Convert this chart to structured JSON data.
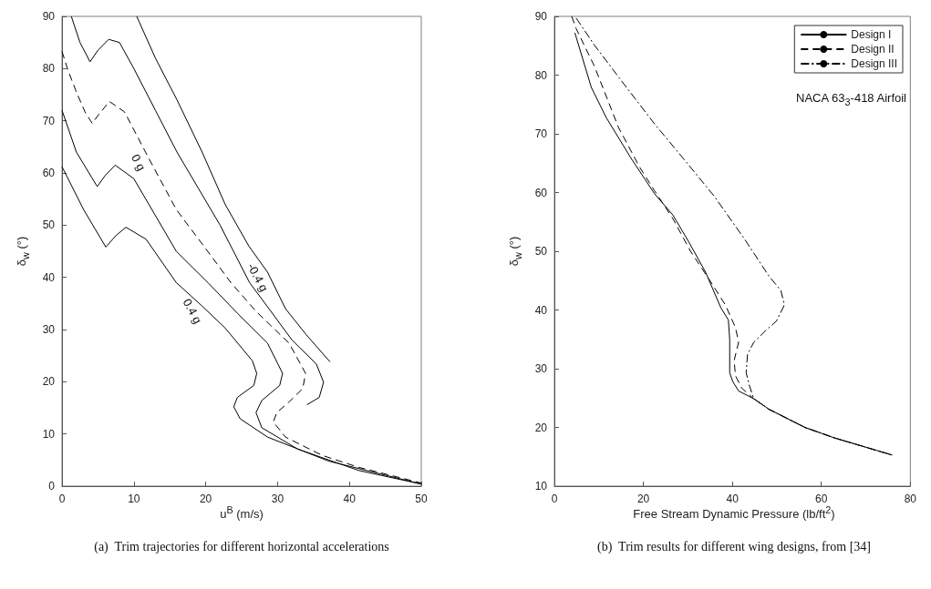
{
  "chart_data": [
    {
      "type": "line",
      "xlabel": "u$^{B}$ (m/s)",
      "ylabel": "δ$_{w}$ (°)",
      "xlim": [
        0,
        50
      ],
      "xticks": [
        0,
        10,
        20,
        30,
        40,
        50
      ],
      "ylim": [
        0,
        90
      ],
      "yticks": [
        0,
        10,
        20,
        30,
        40,
        50,
        60,
        70,
        80,
        90
      ],
      "grid": false,
      "legend": false,
      "marker": "none",
      "series": [
        {
          "color": "#000000",
          "line_style": "solid",
          "x": [
            10.4,
            13,
            16,
            19.5,
            22.7,
            26,
            28.6,
            31.1,
            34,
            37.3
          ],
          "values": [
            90,
            82,
            74,
            64,
            54,
            46,
            41,
            34,
            29,
            23.8
          ]
        },
        {
          "color": "#000000",
          "line_style": "solid",
          "x": [
            1.3,
            2.5,
            3.9,
            5,
            6.5,
            8,
            10,
            13,
            16,
            19,
            22,
            26.1,
            28.8,
            32,
            35.4,
            36.4,
            35.8,
            34.1
          ],
          "values": [
            90,
            85,
            81.3,
            83.5,
            85.6,
            85,
            80,
            72,
            64,
            57,
            50,
            39,
            34,
            28,
            23.4,
            19.9,
            17,
            15.6
          ]
        },
        {
          "color": "#000000",
          "line_style": "dashed",
          "x": [
            0,
            0.8,
            2,
            3.2,
            4.2,
            5,
            6.6,
            8.7,
            12,
            15.9,
            20,
            23.5,
            27,
            31.6,
            33.9,
            33.5,
            31.5,
            29.9,
            29.4,
            31.1,
            36.2,
            41.3,
            50
          ],
          "values": [
            83.3,
            79.8,
            75.5,
            71.7,
            69.5,
            71,
            73.7,
            71.7,
            63,
            53,
            45.5,
            39,
            33.5,
            27.4,
            21.6,
            18.7,
            16,
            14.1,
            12.3,
            9.4,
            5.9,
            3.6,
            0.6
          ]
        },
        {
          "color": "#000000",
          "line_style": "solid",
          "x": [
            0,
            2,
            4.9,
            6,
            7.4,
            10,
            15.9,
            20.3,
            24.5,
            28.6,
            30.7,
            30.3,
            27.8,
            27,
            27.8,
            32.8,
            41.3,
            50
          ],
          "values": [
            72,
            64,
            57.4,
            59.5,
            61.5,
            58.9,
            45,
            39,
            33,
            27.4,
            21.6,
            19.3,
            16.4,
            14.1,
            11.2,
            7.1,
            3,
            0.4
          ]
        },
        {
          "color": "#000000",
          "line_style": "solid",
          "x": [
            0,
            3,
            6.1,
            7.5,
            8.9,
            11.7,
            15.9,
            19.5,
            22.7,
            26.5,
            27.1,
            26.7,
            24.4,
            23.9,
            24.8,
            28.6,
            37.1,
            50
          ],
          "values": [
            61.2,
            53,
            45.8,
            48,
            49.6,
            47.3,
            39,
            34.5,
            30.3,
            24,
            21.6,
            19.3,
            17,
            15.2,
            12.9,
            9.4,
            4.8,
            0.4
          ]
        }
      ],
      "annotations": [
        {
          "text": "-0.4 g",
          "x": 28.6,
          "y": 41
        },
        {
          "text": "0 g",
          "x": 12,
          "y": 63
        },
        {
          "text": "0.4 g",
          "x": 19.5,
          "y": 34.5
        },
        "(a)  Trim trajectories for different horizontal accelerations"
      ]
    },
    {
      "type": "line",
      "xlabel": "Free Stream Dynamic Pressure (lb/ft$^{2}$)",
      "ylabel": "δ$_{w}$ (°)",
      "xlim": [
        0,
        80
      ],
      "xticks": [
        0,
        20,
        40,
        60,
        80
      ],
      "ylim": [
        10,
        90
      ],
      "yticks": [
        10,
        20,
        30,
        40,
        50,
        60,
        70,
        80,
        90
      ],
      "grid": false,
      "legend": "top right",
      "marker": "none",
      "series": [
        {
          "name": "Design I",
          "color": "#000000",
          "line_style": "solid",
          "x": [
            4.6,
            8.3,
            11.7,
            17.1,
            22.5,
            26.6,
            29.9,
            34,
            37.4,
            39.1,
            39.4,
            39.4,
            40.1,
            41.4,
            44.8,
            48.2,
            56.3,
            63,
            75.9
          ],
          "values": [
            87.2,
            77.9,
            72.7,
            66,
            59.8,
            56.2,
            52,
            46.4,
            40.4,
            38.3,
            35,
            29.3,
            27.8,
            26.2,
            24.9,
            23.1,
            20,
            18.2,
            15.3
          ]
        },
        {
          "name": "Design II",
          "color": "#000000",
          "line_style": "dashed",
          "x": [
            3.9,
            4.9,
            9,
            14.4,
            19.1,
            22.5,
            26.6,
            30.6,
            34.7,
            38.4,
            40.7,
            41.4,
            40.4,
            40.7,
            42.1,
            44.8,
            48.2,
            56.3,
            63,
            75.9
          ],
          "values": [
            90,
            87.9,
            81.5,
            71.1,
            64.4,
            60.3,
            55.6,
            50,
            45.3,
            40.9,
            37,
            34.5,
            31.4,
            28.8,
            26.7,
            24.9,
            23.1,
            20,
            18.2,
            15.3
          ]
        },
        {
          "name": "Design III",
          "color": "#000000",
          "line_style": "dashdot",
          "x": [
            4.9,
            9,
            15.7,
            22.5,
            29.3,
            36,
            42.8,
            48.2,
            50.9,
            51.6,
            51.6,
            49.9,
            47.5,
            44.8,
            43.4,
            43.1,
            43.8,
            44.8,
            48.2,
            56.3,
            63,
            75.9
          ],
          "values": [
            89.7,
            85.1,
            78.4,
            71.7,
            65.5,
            59.3,
            52,
            45.8,
            43.3,
            41.2,
            40.7,
            38.1,
            36.5,
            34.5,
            32.4,
            29.3,
            27.2,
            24.9,
            23.1,
            20,
            18.2,
            15.3
          ]
        }
      ],
      "annotations": [
        "NACA 63$_{3}$-418 Airfoil",
        "(b)  Trim results for different wing designs, from [34]"
      ]
    }
  ]
}
